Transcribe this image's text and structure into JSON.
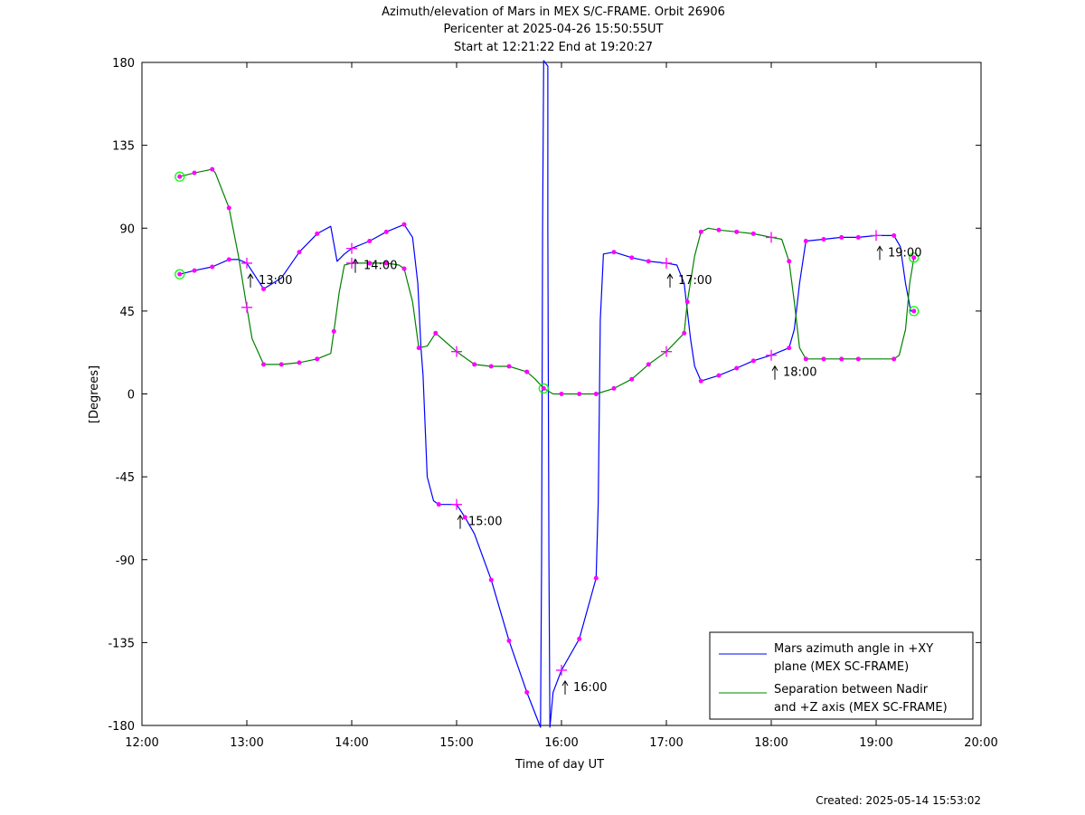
{
  "header": {
    "title_line1": "Azimuth/elevation of Mars in MEX S/C-FRAME.  Orbit 26906",
    "title_line2": "Pericenter at 2025-04-26 15:50:55UT",
    "title_line3": "Start at 12:21:22 End at 19:20:27"
  },
  "footer": {
    "created": "Created: 2025-05-14 15:53:02"
  },
  "colors": {
    "azimuth": "#0000ff",
    "separation": "#008000",
    "marker": "#ff00ff",
    "endpoint": "#00ff00"
  },
  "chart_data": {
    "type": "line",
    "xlabel": "Time of day UT",
    "ylabel": "[Degrees]",
    "xlim": [
      12.0,
      20.0
    ],
    "ylim": [
      -180,
      180
    ],
    "xticks": [
      12,
      13,
      14,
      15,
      16,
      17,
      18,
      19,
      20
    ],
    "xtick_labels": [
      "12:00",
      "13:00",
      "14:00",
      "15:00",
      "16:00",
      "17:00",
      "18:00",
      "19:00",
      "20:00"
    ],
    "yticks": [
      180,
      135,
      90,
      45,
      0,
      -45,
      -90,
      -135,
      -180
    ],
    "ytick_labels": [
      "180",
      "135",
      "90",
      "45",
      "0",
      "-45",
      "-90",
      "-135",
      "-180"
    ],
    "grid": false,
    "legend_position": "bottom-right",
    "series": [
      {
        "name": "Mars azimuth angle in +XY plane (MEX SC-FRAME)",
        "legend_line1": "Mars azimuth angle in +XY",
        "legend_line2": "plane (MEX SC-FRAME)",
        "color": "#0000ff",
        "points": [
          [
            12.36,
            65
          ],
          [
            12.5,
            67
          ],
          [
            12.67,
            69
          ],
          [
            12.83,
            73
          ],
          [
            12.92,
            73
          ],
          [
            13.0,
            71
          ],
          [
            13.08,
            64
          ],
          [
            13.16,
            57
          ],
          [
            13.33,
            63
          ],
          [
            13.5,
            77
          ],
          [
            13.67,
            87
          ],
          [
            13.8,
            91
          ],
          [
            13.86,
            72
          ],
          [
            13.93,
            76
          ],
          [
            14.0,
            79
          ],
          [
            14.17,
            83
          ],
          [
            14.33,
            88
          ],
          [
            14.5,
            92
          ],
          [
            14.58,
            85
          ],
          [
            14.63,
            60
          ],
          [
            14.66,
            25
          ],
          [
            14.68,
            10
          ],
          [
            14.72,
            -45
          ],
          [
            14.78,
            -58
          ],
          [
            14.83,
            -60
          ],
          [
            15.0,
            -60
          ],
          [
            15.08,
            -67
          ],
          [
            15.17,
            -76
          ],
          [
            15.33,
            -101
          ],
          [
            15.5,
            -134
          ],
          [
            15.67,
            -162
          ],
          [
            15.8,
            -181
          ],
          [
            15.81,
            -90
          ],
          [
            15.82,
            90
          ],
          [
            15.83,
            181
          ],
          [
            15.87,
            178
          ],
          [
            15.87,
            90
          ],
          [
            15.88,
            -90
          ],
          [
            15.89,
            -181
          ],
          [
            15.92,
            -162
          ],
          [
            16.0,
            -150
          ],
          [
            16.17,
            -133
          ],
          [
            16.33,
            -100
          ],
          [
            16.35,
            -60
          ],
          [
            16.36,
            -10
          ],
          [
            16.37,
            40
          ],
          [
            16.4,
            76
          ],
          [
            16.5,
            77
          ],
          [
            16.67,
            74
          ],
          [
            16.83,
            72
          ],
          [
            17.0,
            71
          ],
          [
            17.1,
            70
          ],
          [
            17.17,
            60
          ],
          [
            17.23,
            30
          ],
          [
            17.27,
            15
          ],
          [
            17.33,
            7
          ],
          [
            17.5,
            10
          ],
          [
            17.67,
            14
          ],
          [
            17.83,
            18
          ],
          [
            18.0,
            21
          ],
          [
            18.17,
            25
          ],
          [
            18.22,
            35
          ],
          [
            18.27,
            60
          ],
          [
            18.33,
            83
          ],
          [
            18.5,
            84
          ],
          [
            18.67,
            85
          ],
          [
            18.83,
            85
          ],
          [
            19.0,
            86
          ],
          [
            19.17,
            86
          ],
          [
            19.23,
            80
          ],
          [
            19.28,
            60
          ],
          [
            19.33,
            45
          ],
          [
            19.36,
            45
          ]
        ],
        "markers": [
          [
            12.5,
            67
          ],
          [
            12.67,
            69
          ],
          [
            12.83,
            73
          ],
          [
            13.16,
            57
          ],
          [
            13.5,
            77
          ],
          [
            13.67,
            87
          ],
          [
            14.17,
            83
          ],
          [
            14.33,
            88
          ],
          [
            14.5,
            92
          ],
          [
            14.83,
            -60
          ],
          [
            15.08,
            -67
          ],
          [
            15.33,
            -101
          ],
          [
            15.5,
            -134
          ],
          [
            15.67,
            -162
          ],
          [
            16.17,
            -133
          ],
          [
            16.33,
            -100
          ],
          [
            16.5,
            77
          ],
          [
            16.67,
            74
          ],
          [
            16.83,
            72
          ],
          [
            17.33,
            7
          ],
          [
            17.5,
            10
          ],
          [
            17.67,
            14
          ],
          [
            17.83,
            18
          ],
          [
            18.17,
            25
          ],
          [
            18.33,
            83
          ],
          [
            18.5,
            84
          ],
          [
            18.67,
            85
          ],
          [
            18.83,
            85
          ],
          [
            19.17,
            86
          ]
        ],
        "cross_markers": [
          [
            13.0,
            71
          ],
          [
            14.0,
            79
          ],
          [
            15.0,
            -60
          ],
          [
            16.0,
            -150
          ],
          [
            17.0,
            71
          ],
          [
            18.0,
            21
          ],
          [
            19.0,
            86
          ]
        ],
        "endpoints": [
          [
            12.36,
            65
          ],
          [
            19.36,
            45
          ]
        ]
      },
      {
        "name": "Separation between Nadir and +Z axis (MEX SC-FRAME)",
        "legend_line1": "Separation between Nadir",
        "legend_line2": "and +Z axis (MEX SC-FRAME)",
        "color": "#008000",
        "points": [
          [
            12.36,
            118
          ],
          [
            12.5,
            120
          ],
          [
            12.67,
            122
          ],
          [
            12.7,
            120
          ],
          [
            12.83,
            101
          ],
          [
            12.92,
            75
          ],
          [
            13.0,
            47
          ],
          [
            13.05,
            30
          ],
          [
            13.16,
            16
          ],
          [
            13.33,
            16
          ],
          [
            13.5,
            17
          ],
          [
            13.67,
            19
          ],
          [
            13.8,
            22
          ],
          [
            13.83,
            34
          ],
          [
            13.88,
            55
          ],
          [
            13.93,
            70
          ],
          [
            14.0,
            71
          ],
          [
            14.17,
            71
          ],
          [
            14.33,
            71
          ],
          [
            14.45,
            70
          ],
          [
            14.5,
            68
          ],
          [
            14.58,
            50
          ],
          [
            14.64,
            25
          ],
          [
            14.72,
            26
          ],
          [
            14.8,
            33
          ],
          [
            14.9,
            28
          ],
          [
            15.0,
            23
          ],
          [
            15.17,
            16
          ],
          [
            15.33,
            15
          ],
          [
            15.5,
            15
          ],
          [
            15.67,
            12
          ],
          [
            15.75,
            8
          ],
          [
            15.83,
            3
          ],
          [
            15.92,
            0
          ],
          [
            16.0,
            0
          ],
          [
            16.17,
            0
          ],
          [
            16.33,
            0
          ],
          [
            16.5,
            3
          ],
          [
            16.67,
            8
          ],
          [
            16.83,
            16
          ],
          [
            17.0,
            23
          ],
          [
            17.17,
            33
          ],
          [
            17.2,
            50
          ],
          [
            17.27,
            75
          ],
          [
            17.33,
            88
          ],
          [
            17.4,
            90
          ],
          [
            17.5,
            89
          ],
          [
            17.67,
            88
          ],
          [
            17.83,
            87
          ],
          [
            18.0,
            85
          ],
          [
            18.1,
            84
          ],
          [
            18.17,
            72
          ],
          [
            18.22,
            50
          ],
          [
            18.27,
            25
          ],
          [
            18.33,
            19
          ],
          [
            18.5,
            19
          ],
          [
            18.67,
            19
          ],
          [
            18.83,
            19
          ],
          [
            19.0,
            19
          ],
          [
            19.17,
            19
          ],
          [
            19.22,
            21
          ],
          [
            19.28,
            35
          ],
          [
            19.32,
            60
          ],
          [
            19.36,
            74
          ]
        ],
        "markers": [
          [
            12.5,
            120
          ],
          [
            12.67,
            122
          ],
          [
            12.83,
            101
          ],
          [
            13.16,
            16
          ],
          [
            13.33,
            16
          ],
          [
            13.5,
            17
          ],
          [
            13.67,
            19
          ],
          [
            13.83,
            34
          ],
          [
            14.17,
            71
          ],
          [
            14.33,
            71
          ],
          [
            14.5,
            68
          ],
          [
            14.64,
            25
          ],
          [
            14.8,
            33
          ],
          [
            15.17,
            16
          ],
          [
            15.33,
            15
          ],
          [
            15.5,
            15
          ],
          [
            15.67,
            12
          ],
          [
            16.0,
            0
          ],
          [
            16.17,
            0
          ],
          [
            16.33,
            0
          ],
          [
            16.5,
            3
          ],
          [
            16.67,
            8
          ],
          [
            16.83,
            16
          ],
          [
            17.17,
            33
          ],
          [
            17.2,
            50
          ],
          [
            17.33,
            88
          ],
          [
            17.5,
            89
          ],
          [
            17.67,
            88
          ],
          [
            17.83,
            87
          ],
          [
            18.17,
            72
          ],
          [
            18.33,
            19
          ],
          [
            18.5,
            19
          ],
          [
            18.67,
            19
          ],
          [
            18.83,
            19
          ],
          [
            19.17,
            19
          ]
        ],
        "cross_markers": [
          [
            13.0,
            47
          ],
          [
            14.0,
            71
          ],
          [
            15.0,
            23
          ],
          [
            17.0,
            23
          ],
          [
            18.0,
            85
          ]
        ],
        "endpoints": [
          [
            12.36,
            118
          ],
          [
            15.83,
            3
          ],
          [
            19.36,
            74
          ]
        ]
      }
    ],
    "annotations": [
      {
        "label": "13:00",
        "x": 13.0,
        "y": 71
      },
      {
        "label": "14:00",
        "x": 14.0,
        "y": 79
      },
      {
        "label": "15:00",
        "x": 15.0,
        "y": -60
      },
      {
        "label": "16:00",
        "x": 16.0,
        "y": -150
      },
      {
        "label": "17:00",
        "x": 17.0,
        "y": 71
      },
      {
        "label": "18:00",
        "x": 18.0,
        "y": 21
      },
      {
        "label": "19:00",
        "x": 19.0,
        "y": 86
      }
    ]
  }
}
